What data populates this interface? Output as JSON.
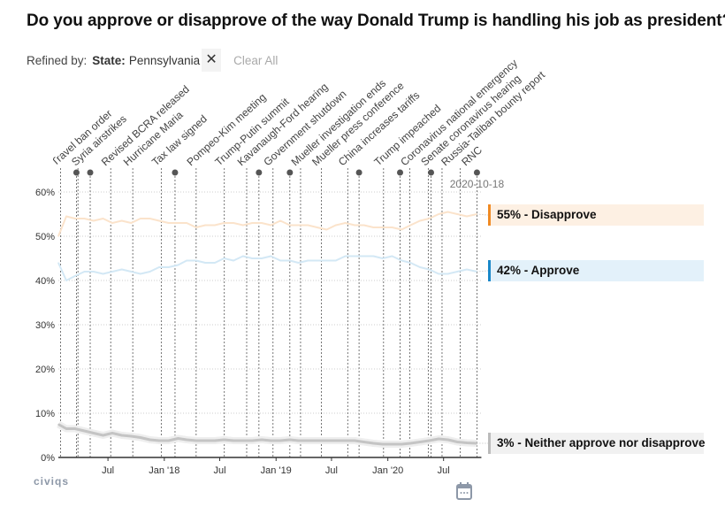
{
  "title": "Do you approve or disapprove of the way Donald Trump is handling his job as president?",
  "refine": {
    "label": "Refined by:",
    "filter_key": "State:",
    "filter_value": "Pennsylvania",
    "remove_icon": "close-icon",
    "clear_all": "Clear All"
  },
  "logo": "CIVIQS",
  "calendar_icon": "calendar-icon",
  "chart_data": {
    "type": "line",
    "ylim": [
      0,
      62
    ],
    "y_ticks": [
      "0%",
      "10%",
      "20%",
      "30%",
      "40%",
      "50%",
      "60%"
    ],
    "y_tick_values": [
      0,
      10,
      20,
      30,
      40,
      50,
      60
    ],
    "x_ticks": [
      {
        "label": "Jul",
        "date": "2017-07-01"
      },
      {
        "label": "Jan '18",
        "date": "2018-01-01"
      },
      {
        "label": "Jul",
        "date": "2018-07-01"
      },
      {
        "label": "Jan '19",
        "date": "2019-01-01"
      },
      {
        "label": "Jul",
        "date": "2019-07-01"
      },
      {
        "label": "Jan '20",
        "date": "2020-01-01"
      },
      {
        "label": "Jul",
        "date": "2020-07-01"
      }
    ],
    "x_range": [
      "2017-01-20",
      "2020-10-18"
    ],
    "grid": "horizontal dotted",
    "end_date_label": "2020-10-18",
    "months": [
      "2017-01",
      "2017-02",
      "2017-03",
      "2017-04",
      "2017-05",
      "2017-06",
      "2017-07",
      "2017-08",
      "2017-09",
      "2017-10",
      "2017-11",
      "2017-12",
      "2018-01",
      "2018-02",
      "2018-03",
      "2018-04",
      "2018-05",
      "2018-06",
      "2018-07",
      "2018-08",
      "2018-09",
      "2018-10",
      "2018-11",
      "2018-12",
      "2019-01",
      "2019-02",
      "2019-03",
      "2019-04",
      "2019-05",
      "2019-06",
      "2019-07",
      "2019-08",
      "2019-09",
      "2019-10",
      "2019-11",
      "2019-12",
      "2020-01",
      "2020-02",
      "2020-03",
      "2020-04",
      "2020-05",
      "2020-06",
      "2020-07",
      "2020-08",
      "2020-09",
      "2020-10"
    ],
    "series": [
      {
        "name": "Disapprove",
        "end_label": "55% - Disapprove",
        "color": "#f08a24",
        "line_color": "#fbe3cb",
        "box_color": "#fdf0e3",
        "values": [
          50,
          54.5,
          54,
          54,
          53.5,
          54,
          53,
          53.5,
          53,
          54,
          54,
          53.5,
          53,
          53,
          53,
          52,
          52.5,
          52.5,
          53,
          53,
          52.5,
          53,
          53,
          52.5,
          53.5,
          52.5,
          52.5,
          52.5,
          52,
          51.5,
          52.5,
          53,
          52.5,
          52.5,
          52,
          52,
          52,
          51.5,
          52.5,
          53.5,
          54,
          55,
          55.5,
          55,
          54.5,
          55
        ]
      },
      {
        "name": "Approve",
        "end_label": "42% - Approve",
        "color": "#1a88c9",
        "line_color": "#d3e8f5",
        "box_color": "#e3f1fa",
        "values": [
          44,
          40,
          41,
          42,
          42,
          41.5,
          42,
          42.5,
          42,
          41.5,
          42,
          43,
          43,
          43.5,
          44.5,
          44.5,
          44,
          44,
          45,
          44.5,
          45.5,
          45,
          45,
          45.5,
          44.5,
          44.5,
          44,
          44.5,
          44.5,
          44.5,
          44.5,
          45.5,
          45.5,
          45.5,
          45.5,
          45,
          45.5,
          44.5,
          44,
          43,
          42.5,
          41.5,
          41.5,
          42,
          42.5,
          42
        ]
      },
      {
        "name": "Neither approve nor disapprove",
        "end_label": "3% - Neither approve nor disapprove",
        "color": "#bbbbbb",
        "line_color": "#c4c4c4",
        "box_color": "#f1f1f1",
        "values": [
          7.5,
          6.5,
          6.5,
          6,
          5.5,
          5,
          5.5,
          5,
          4.8,
          4.5,
          4,
          3.8,
          3.8,
          4.3,
          4,
          3.8,
          3.8,
          3.8,
          4,
          3.8,
          3.8,
          3.8,
          4,
          3.8,
          3.8,
          4,
          3.8,
          3.8,
          3.8,
          3.8,
          3.8,
          3.8,
          3.8,
          3.5,
          3.2,
          3,
          3,
          3,
          3.2,
          3.5,
          3.8,
          4.2,
          4,
          3.5,
          3.3,
          3.2
        ]
      }
    ],
    "events": [
      {
        "label": "Travel ban order",
        "date": "2017-01-27"
      },
      {
        "label": "Syria airstrikes",
        "date": "2017-03-25"
      },
      {
        "label": "Revised BCRA released",
        "date": "2017-07-10"
      },
      {
        "label": "Hurricane Maria",
        "date": "2017-09-20"
      },
      {
        "label": "Tax law signed",
        "date": "2017-12-22"
      },
      {
        "label": "Pompeo-Kim meeting",
        "date": "2018-04-15"
      },
      {
        "label": "Trump-Putin summit",
        "date": "2018-07-16"
      },
      {
        "label": "Kavanaugh-Ford hearing",
        "date": "2018-09-27"
      },
      {
        "label": "Government shutdown",
        "date": "2018-12-22"
      },
      {
        "label": "Mueller investigation ends",
        "date": "2019-03-22"
      },
      {
        "label": "Mueller press conference",
        "date": "2019-05-29"
      },
      {
        "label": "China increases tariffs",
        "date": "2019-08-23"
      },
      {
        "label": "Trump impeached",
        "date": "2019-12-18"
      },
      {
        "label": "Coronavirus national emergency",
        "date": "2020-03-13"
      },
      {
        "label": "Senate coronavirus hearing",
        "date": "2020-05-12"
      },
      {
        "label": "Russia-Taliban bounty report",
        "date": "2020-06-26"
      },
      {
        "label": "RNC",
        "date": "2020-08-24"
      }
    ],
    "event_dots": [
      "2017-03-20",
      "2017-05-04",
      "2018-02-05",
      "2018-11-06",
      "2019-02-15",
      "2019-09-29",
      "2020-02-10",
      "2020-05-21",
      "2020-10-18"
    ]
  }
}
